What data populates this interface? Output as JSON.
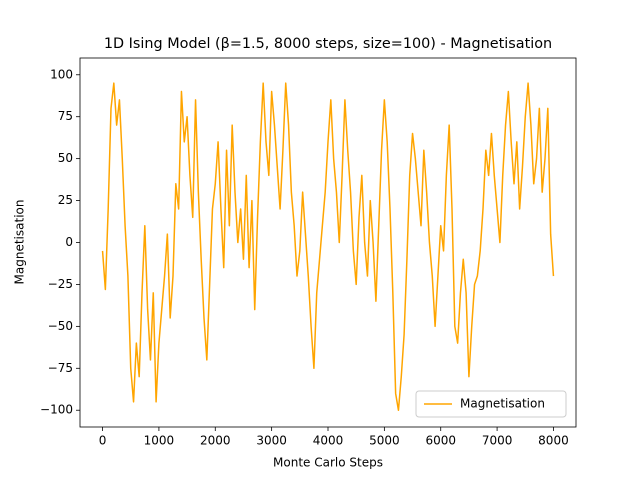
{
  "chart_data": {
    "type": "line",
    "title": "1D Ising Model (β=1.5, 8000 steps, size=100) - Magnetisation",
    "x_label": "Monte Carlo Steps",
    "y_label": "Magnetisation",
    "x": [
      0,
      50,
      100,
      150,
      200,
      250,
      300,
      350,
      400,
      450,
      500,
      550,
      600,
      650,
      700,
      750,
      800,
      850,
      900,
      950,
      1000,
      1050,
      1100,
      1150,
      1200,
      1250,
      1300,
      1350,
      1400,
      1450,
      1500,
      1550,
      1600,
      1650,
      1700,
      1750,
      1800,
      1850,
      1900,
      1950,
      2000,
      2050,
      2100,
      2150,
      2200,
      2250,
      2300,
      2350,
      2400,
      2450,
      2500,
      2550,
      2600,
      2650,
      2700,
      2750,
      2800,
      2850,
      2900,
      2950,
      3000,
      3050,
      3100,
      3150,
      3200,
      3250,
      3300,
      3350,
      3400,
      3450,
      3500,
      3550,
      3600,
      3650,
      3700,
      3750,
      3800,
      3850,
      3900,
      3950,
      4000,
      4050,
      4100,
      4150,
      4200,
      4250,
      4300,
      4350,
      4400,
      4450,
      4500,
      4550,
      4600,
      4650,
      4700,
      4750,
      4800,
      4850,
      4900,
      4950,
      5000,
      5050,
      5100,
      5150,
      5200,
      5250,
      5300,
      5350,
      5400,
      5450,
      5500,
      5550,
      5600,
      5650,
      5700,
      5750,
      5800,
      5850,
      5900,
      5950,
      6000,
      6050,
      6100,
      6150,
      6200,
      6250,
      6300,
      6350,
      6400,
      6450,
      6500,
      6550,
      6600,
      6650,
      6700,
      6750,
      6800,
      6850,
      6900,
      6950,
      7000,
      7050,
      7100,
      7150,
      7200,
      7250,
      7300,
      7350,
      7400,
      7450,
      7500,
      7550,
      7600,
      7650,
      7700,
      7750,
      7800,
      7850,
      7900,
      7950,
      8000
    ],
    "series": [
      {
        "name": "Magnetisation",
        "color": "#ffa500",
        "values": [
          -5,
          -28,
          20,
          80,
          95,
          70,
          85,
          50,
          10,
          -20,
          -75,
          -95,
          -60,
          -80,
          -30,
          10,
          -40,
          -70,
          -30,
          -95,
          -60,
          -40,
          -20,
          5,
          -45,
          -20,
          35,
          20,
          90,
          60,
          75,
          40,
          15,
          85,
          30,
          -10,
          -45,
          -70,
          -25,
          20,
          35,
          60,
          20,
          -15,
          55,
          10,
          70,
          30,
          0,
          20,
          -10,
          40,
          -15,
          25,
          -40,
          15,
          60,
          95,
          60,
          40,
          90,
          70,
          45,
          20,
          55,
          95,
          70,
          30,
          10,
          -20,
          -5,
          30,
          5,
          -20,
          -50,
          -75,
          -30,
          -10,
          10,
          30,
          60,
          85,
          50,
          30,
          0,
          40,
          85,
          55,
          30,
          -5,
          -25,
          15,
          40,
          0,
          -20,
          25,
          0,
          -35,
          10,
          55,
          85,
          60,
          20,
          -30,
          -90,
          -100,
          -80,
          -55,
          -10,
          40,
          65,
          50,
          30,
          10,
          55,
          30,
          0,
          -20,
          -50,
          -20,
          10,
          -5,
          40,
          70,
          20,
          -50,
          -60,
          -30,
          -10,
          -30,
          -80,
          -50,
          -25,
          -20,
          -5,
          20,
          55,
          40,
          65,
          40,
          20,
          0,
          40,
          70,
          90,
          60,
          35,
          60,
          20,
          45,
          75,
          95,
          70,
          35,
          50,
          80,
          30,
          50,
          80,
          5,
          -20
        ]
      }
    ],
    "xlim": [
      -400,
      8400
    ],
    "ylim": [
      -110,
      110
    ],
    "xticks": [
      0,
      1000,
      2000,
      3000,
      4000,
      5000,
      6000,
      7000,
      8000
    ],
    "yticks": [
      {
        "value": -100,
        "label": "−100"
      },
      {
        "value": -75,
        "label": "−75"
      },
      {
        "value": -50,
        "label": "−50"
      },
      {
        "value": -25,
        "label": "−25"
      },
      0,
      25,
      50,
      75,
      100
    ],
    "legend": "lower right"
  }
}
